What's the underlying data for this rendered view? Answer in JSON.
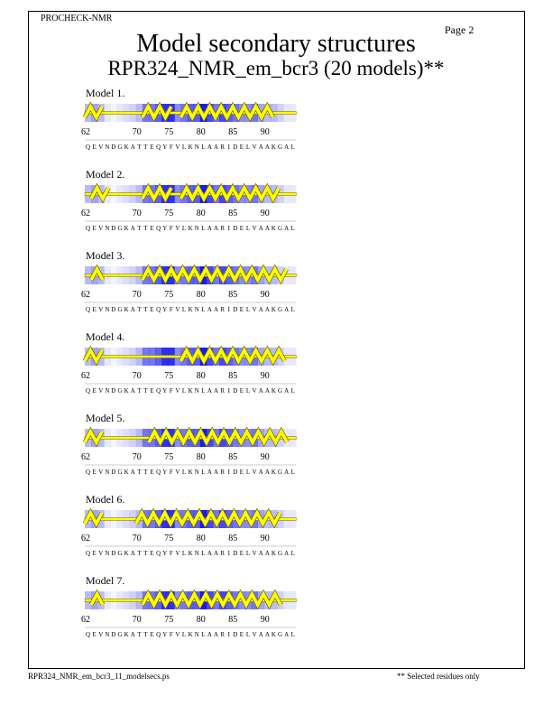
{
  "header": {
    "program": "PROCHECK-NMR",
    "page": "Page  2",
    "title": "Model secondary structures",
    "subtitle": "RPR324_NMR_em_bcr3 (20 models)**"
  },
  "footer": {
    "filename": "RPR324_NMR_em_bcr3_11_modelsecs.ps",
    "note": "** Selected residues only"
  },
  "colors": {
    "shade": "#0000ee",
    "helix": "#ffff00",
    "helix_edge": "#666600"
  },
  "residues": {
    "start": 62,
    "sequence": "QEVNDGKATTEQYFVLKNLAARIDELVAAKGAL",
    "tick_labels": [
      62,
      70,
      75,
      80,
      85,
      90
    ],
    "shading": [
      0.3,
      0.4,
      0.3,
      0.1,
      0.05,
      0.1,
      0.15,
      0.2,
      0.3,
      0.6,
      0.6,
      0.7,
      0.9,
      0.9,
      0.5,
      0.6,
      0.7,
      0.7,
      1,
      0.8,
      0.6,
      0.8,
      0.7,
      0.6,
      0.5,
      0.5,
      0.6,
      0.4,
      0.3,
      0.3,
      0.2,
      0.1,
      0.1
    ]
  },
  "models": [
    {
      "label": "Model  1.",
      "helices": [
        [
          62,
          64
        ],
        [
          71,
          75
        ],
        [
          77,
          91
        ]
      ]
    },
    {
      "label": "Model  2.",
      "helices": [
        [
          63,
          65
        ],
        [
          71,
          75
        ],
        [
          77,
          92
        ]
      ]
    },
    {
      "label": "Model  3.",
      "helices": [
        [
          63,
          64
        ],
        [
          71,
          93
        ]
      ]
    },
    {
      "label": "Model  4.",
      "helices": [
        [
          62,
          64
        ],
        [
          77,
          93
        ]
      ]
    },
    {
      "label": "Model  5.",
      "helices": [
        [
          62,
          64
        ],
        [
          72,
          93
        ]
      ]
    },
    {
      "label": "Model  6.",
      "helices": [
        [
          62,
          64
        ],
        [
          70,
          92
        ]
      ]
    },
    {
      "label": "Model  7.",
      "helices": [
        [
          63,
          64
        ],
        [
          71,
          92
        ]
      ]
    }
  ]
}
